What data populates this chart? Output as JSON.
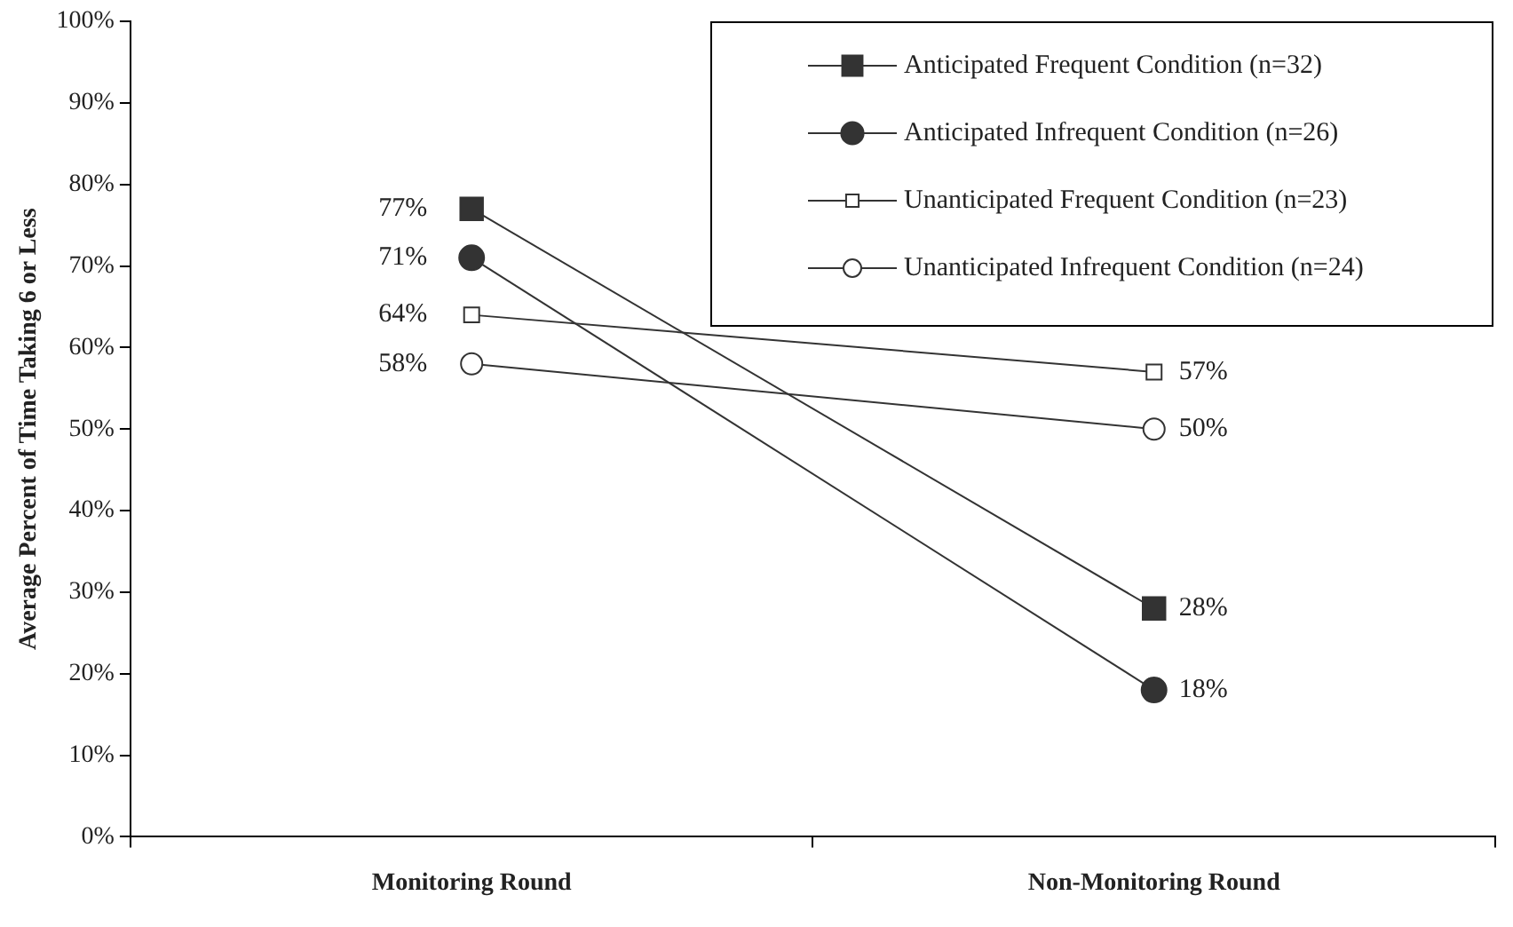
{
  "chart_data": {
    "type": "line",
    "ylabel": "Average Percent of Time Taking 6 or Less",
    "categories": [
      "Monitoring Round",
      "Non-Monitoring Round"
    ],
    "series": [
      {
        "name": "Anticipated Frequent Condition (n=32)",
        "color": "#333333",
        "marker": "square",
        "values": [
          77,
          28
        ],
        "value_labels": [
          "77%",
          "28%"
        ]
      },
      {
        "name": "Anticipated Infrequent Condition (n=26)",
        "color": "#333333",
        "marker": "circle",
        "values": [
          71,
          18
        ],
        "value_labels": [
          "71%",
          "18%"
        ]
      },
      {
        "name": "Unanticipated Frequent Condition (n=23)",
        "color": "#333333",
        "marker": "square",
        "colors": [
          "#ffffff",
          "#ffffff"
        ],
        "values": [
          64,
          57
        ],
        "value_labels": [
          "64%",
          "57%"
        ]
      },
      {
        "name": "Unanticipated Infrequent Condition (n=24)",
        "color": "#333333",
        "marker": "circle",
        "colors": [
          "#ffffff",
          "#ffffff"
        ],
        "values": [
          58,
          50
        ],
        "value_labels": [
          "58%",
          "50%"
        ]
      }
    ],
    "ylim": [
      0,
      100
    ],
    "yticks": [
      {
        "value": 0,
        "label": "0%"
      },
      {
        "value": 10,
        "label": "10%"
      },
      {
        "value": 20,
        "label": "20%"
      },
      {
        "value": 30,
        "label": "30%"
      },
      {
        "value": 40,
        "label": "40%"
      },
      {
        "value": 50,
        "label": "50%"
      },
      {
        "value": 60,
        "label": "60%"
      },
      {
        "value": 70,
        "label": "70%"
      },
      {
        "value": 80,
        "label": "80%"
      },
      {
        "value": 90,
        "label": "90%"
      },
      {
        "value": 100,
        "label": "100%"
      }
    ],
    "grid": false,
    "legend": "top right",
    "line_style": "solid"
  }
}
